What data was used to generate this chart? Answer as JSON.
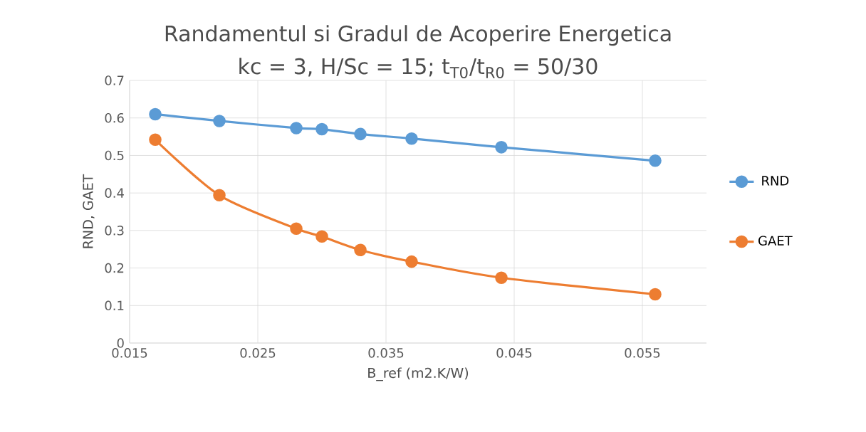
{
  "chart_data": {
    "type": "line",
    "title": "Randamentul si Gradul de Acoperire Energetica",
    "subtitle": "kc = 3, H/Sc = 15; t$_{T0}$/t$_{R0}$ = 50/30",
    "xlabel": "B_ref (m2.K/W)",
    "ylabel": "RND, GAET",
    "x": [
      0.017,
      0.022,
      0.028,
      0.03,
      0.033,
      0.037,
      0.044,
      0.056
    ],
    "series": [
      {
        "name": "RND",
        "color": "#5b9bd5",
        "values": [
          0.61,
          0.592,
          0.573,
          0.57,
          0.557,
          0.545,
          0.522,
          0.486
        ]
      },
      {
        "name": "GAET",
        "color": "#ed7d31",
        "values": [
          0.542,
          0.394,
          0.305,
          0.284,
          0.248,
          0.217,
          0.174,
          0.13
        ]
      }
    ],
    "xlim": [
      0.015,
      0.06
    ],
    "xticks": [
      0.015,
      0.025,
      0.035,
      0.045,
      0.055
    ],
    "ylim": [
      0,
      0.7
    ],
    "yticks": [
      0,
      0.1,
      0.2,
      0.3,
      0.4,
      0.5,
      0.6,
      0.7
    ],
    "grid": true,
    "legend": "right",
    "marker": "circle",
    "line_style": "solid"
  }
}
